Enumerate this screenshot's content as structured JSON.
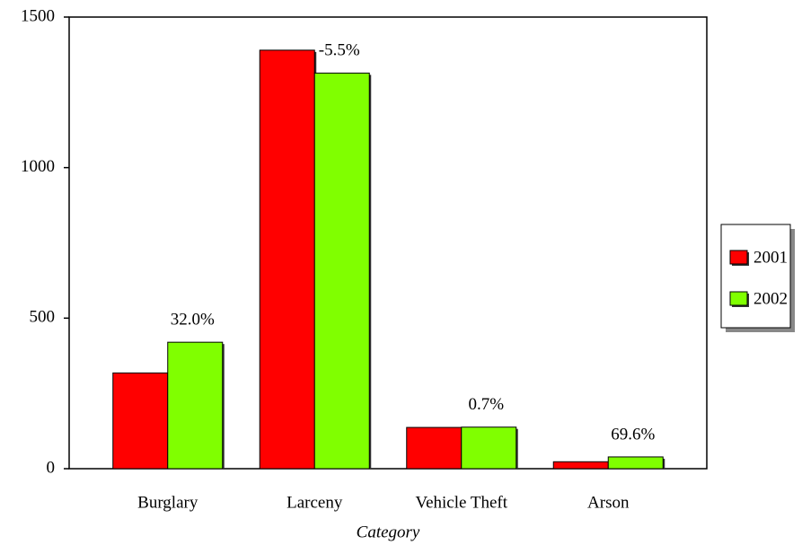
{
  "chart_data": {
    "type": "bar",
    "x_label": "Category",
    "categories": [
      "Burglary",
      "Larceny",
      "Vehicle Theft",
      "Arson"
    ],
    "series": [
      {
        "name": "2001",
        "color": "#ff0000",
        "values": [
          318,
          1390,
          137,
          23
        ]
      },
      {
        "name": "2002",
        "color": "#80ff00",
        "values": [
          420,
          1314,
          138,
          39
        ]
      }
    ],
    "annotations": [
      "32.0%",
      "-5.5%",
      "0.7%",
      "69.6%"
    ],
    "ylim": [
      0,
      1500
    ],
    "yticks": [
      0,
      500,
      1000,
      1500
    ],
    "legend": "right"
  }
}
